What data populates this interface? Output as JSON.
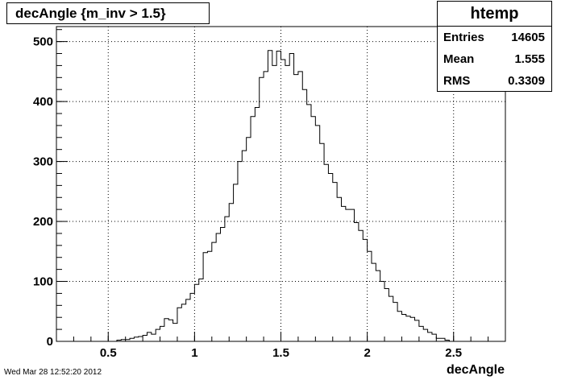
{
  "chart_data": {
    "type": "bar",
    "title": "decAngle {m_inv > 1.5}",
    "xlabel": "decAngle",
    "ylabel": "",
    "xlim": [
      0.2,
      2.8
    ],
    "ylim": [
      0,
      525
    ],
    "xticks": [
      "0.5",
      "1",
      "1.5",
      "2",
      "2.5"
    ],
    "yticks": [
      "0",
      "100",
      "200",
      "300",
      "400",
      "500"
    ],
    "grid": true,
    "bin_width": 0.025,
    "bin_start": 0.3,
    "values": [
      0,
      0,
      0,
      0,
      0,
      0,
      0,
      0,
      0,
      0,
      2,
      3,
      3,
      5,
      7,
      8,
      10,
      15,
      12,
      20,
      25,
      38,
      36,
      30,
      56,
      62,
      70,
      80,
      95,
      104,
      148,
      150,
      165,
      180,
      190,
      208,
      230,
      262,
      300,
      318,
      340,
      375,
      390,
      440,
      450,
      485,
      460,
      484,
      470,
      460,
      480,
      445,
      450,
      420,
      395,
      375,
      360,
      330,
      295,
      280,
      265,
      240,
      225,
      220,
      220,
      198,
      185,
      170,
      150,
      130,
      118,
      100,
      88,
      75,
      65,
      50,
      45,
      42,
      40,
      35,
      25,
      20,
      15,
      12,
      5,
      5,
      2,
      0,
      0,
      0,
      0,
      0,
      0
    ],
    "stats": {
      "name": "htemp",
      "rows": [
        {
          "label": "Entries",
          "value": "14605"
        },
        {
          "label": "Mean",
          "value": "1.555"
        },
        {
          "label": "RMS",
          "value": "0.3309"
        }
      ]
    },
    "timestamp": "Wed Mar 28 12:52:20 2012"
  },
  "colors": {
    "line": "#000000",
    "grid": "#000000",
    "background": "#ffffff"
  }
}
